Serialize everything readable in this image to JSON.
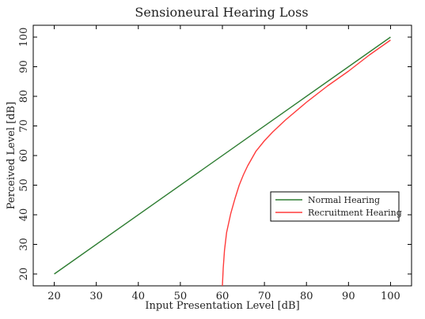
{
  "chart_data": {
    "type": "line",
    "title": "Sensioneural Hearing Loss",
    "xlabel": "Input Presentation Level [dB]",
    "ylabel": "Perceived Level [dB]",
    "xlim": [
      15,
      105
    ],
    "ylim": [
      16,
      104
    ],
    "xticks": [
      20,
      30,
      40,
      50,
      60,
      70,
      80,
      90,
      100
    ],
    "yticks": [
      20,
      30,
      40,
      50,
      60,
      70,
      80,
      90,
      100
    ],
    "grid": false,
    "legend_position": "center-right",
    "series": [
      {
        "name": "Normal Hearing",
        "color": "#2e7d32",
        "x": [
          20,
          100
        ],
        "y": [
          20,
          100
        ]
      },
      {
        "name": "Recruitment Hearing",
        "color": "#ff3b3b",
        "x": [
          60,
          60.2,
          60.5,
          61,
          62,
          63,
          64,
          65,
          66,
          67,
          68,
          70,
          72,
          75,
          80,
          85,
          90,
          95,
          100
        ],
        "y": [
          16,
          22,
          28,
          34,
          40.5,
          45.5,
          50,
          53.5,
          56.5,
          59,
          61.5,
          65,
          68,
          72,
          78,
          83.5,
          88.5,
          94,
          99
        ]
      }
    ]
  }
}
